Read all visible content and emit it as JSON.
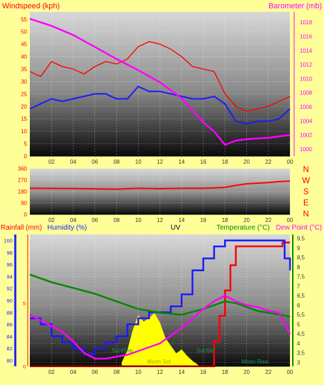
{
  "colors": {
    "background": "#ffff99",
    "red": "#ff0000",
    "blue": "#1a1aff",
    "magenta": "#ff00ff",
    "green": "#008800",
    "yellow": "#ffff00",
    "white": "#ffffff"
  },
  "chart_data": [
    {
      "type": "line",
      "title": "",
      "left_axis_label": "Windspeed (kph)",
      "right_axis_label": "Barometer (mb)",
      "x_ticks": [
        "02",
        "04",
        "06",
        "08",
        "10",
        "12",
        "14",
        "16",
        "18",
        "20",
        "22",
        "00"
      ],
      "y_left_ticks": [
        0,
        5,
        10,
        15,
        20,
        25,
        30,
        35,
        40,
        45,
        50,
        55
      ],
      "y_left_range": [
        0,
        58
      ],
      "y_right_ticks": [
        1000,
        1002,
        1004,
        1006,
        1008,
        1010,
        1012,
        1014,
        1016,
        1018
      ],
      "y_right_range": [
        999,
        1019.5
      ],
      "grid": true,
      "series": [
        {
          "id": "gust",
          "color": "#ff0000",
          "x": [
            0,
            1,
            2,
            3,
            4,
            5,
            6,
            7,
            8,
            9,
            10,
            11,
            12,
            13,
            14,
            15,
            16,
            17,
            18,
            19,
            20,
            21,
            22,
            23,
            24
          ],
          "values": [
            34,
            32,
            38,
            36,
            35,
            33,
            36,
            38,
            37,
            39,
            44,
            46,
            45,
            43,
            40,
            36,
            35,
            34,
            25,
            20,
            18,
            19,
            20,
            22,
            24
          ]
        },
        {
          "id": "average",
          "color": "#1a1aff",
          "x": [
            0,
            1,
            2,
            3,
            4,
            5,
            6,
            7,
            8,
            9,
            10,
            11,
            12,
            13,
            14,
            15,
            16,
            17,
            18,
            19,
            20,
            21,
            22,
            23,
            24
          ],
          "values": [
            19,
            21,
            23,
            22,
            23,
            24,
            25,
            25,
            23,
            23,
            28,
            26,
            26,
            25,
            24,
            23,
            23,
            24,
            21,
            14,
            13,
            14,
            14,
            15,
            19
          ]
        },
        {
          "id": "pressure",
          "color": "#ff00ff",
          "x": [
            0,
            2,
            4,
            6,
            8,
            10,
            12,
            14,
            16,
            17,
            18,
            19,
            20,
            22,
            24
          ],
          "values": [
            1018.5,
            1017.5,
            1016.2,
            1014.5,
            1012.8,
            1011.2,
            1009.5,
            1007.2,
            1003.8,
            1002.5,
            1000.6,
            1001.2,
            1001.4,
            1001.6,
            1002.0
          ]
        }
      ]
    },
    {
      "type": "line",
      "title": "",
      "right_labels": [
        "N",
        "W",
        "S",
        "E",
        "N"
      ],
      "x_ticks": [
        "02",
        "04",
        "06",
        "08",
        "10",
        "12",
        "14",
        "16",
        "18",
        "20",
        "22",
        "00"
      ],
      "y_ticks": [
        0,
        90,
        180,
        270,
        360
      ],
      "y_range": [
        0,
        360
      ],
      "grid": true,
      "series": [
        {
          "id": "direction",
          "color": "#ff0000",
          "x": [
            0,
            4,
            6,
            8,
            10,
            12,
            14,
            16,
            17,
            18,
            19,
            20,
            21,
            22,
            23,
            24
          ],
          "values": [
            205,
            203,
            200,
            198,
            205,
            202,
            205,
            205,
            208,
            212,
            228,
            240,
            245,
            250,
            258,
            262
          ]
        }
      ]
    },
    {
      "type": "line",
      "title": "",
      "labels": {
        "rainfall": "Rainfall (mm)",
        "humidity": "Humidity (%)",
        "uv": "UV",
        "temperature": "Temperature (°C)",
        "dew_point": "Dew Point (°C)",
        "sunrise": "SunRise",
        "sunset": "SunSet",
        "moonset": "Moon Set",
        "moonrise": "Moon Rise"
      },
      "x_ticks": [
        "02",
        "04",
        "06",
        "08",
        "10",
        "12",
        "14",
        "16",
        "18",
        "20",
        "22",
        "00"
      ],
      "rain_ticks": [
        0,
        5
      ],
      "rain_range": [
        0,
        10
      ],
      "humidity_ticks": [
        80,
        82,
        84,
        86,
        88,
        90,
        92,
        94,
        96,
        98,
        100
      ],
      "humidity_range": [
        79,
        101
      ],
      "temp_ticks": [
        3,
        3.5,
        4,
        4.5,
        5,
        5.5,
        6,
        6.5,
        7,
        7.5,
        8,
        8.5,
        9,
        9.5
      ],
      "temp_ticks_text": [
        "3",
        "3,5",
        "4",
        "4,5",
        "5",
        "5,5",
        "6",
        "6,5",
        "7",
        "7,5",
        "8",
        "8,5",
        "9",
        "9,5"
      ],
      "temp_range": [
        2.8,
        9.7
      ],
      "grid": true,
      "series": [
        {
          "id": "rainfall",
          "color": "#ff0000",
          "axis": "rain",
          "x": [
            0,
            16.2,
            17,
            17.5,
            18,
            18.5,
            19,
            20,
            22,
            23,
            23.3,
            24
          ],
          "values": [
            0,
            0,
            2,
            4,
            6,
            8,
            9.5,
            9.5,
            9.5,
            9.5,
            9.8,
            9.8
          ]
        },
        {
          "id": "humidity",
          "color": "#1a1aff",
          "axis": "humidity",
          "x": [
            0,
            1,
            2,
            3,
            4,
            5,
            6,
            7,
            8,
            9,
            10,
            11,
            12,
            13,
            14,
            15,
            16,
            17,
            18,
            19,
            20,
            21,
            22,
            23,
            23.5,
            24
          ],
          "values": [
            87,
            86,
            84,
            83,
            82,
            81,
            82,
            83,
            84,
            86,
            87,
            88,
            88,
            89,
            91,
            95,
            97,
            99,
            100,
            100,
            100,
            100,
            100,
            100,
            97,
            95
          ]
        },
        {
          "id": "temperature",
          "color": "#008800",
          "axis": "temp",
          "x": [
            0,
            2,
            4,
            6,
            8,
            10,
            12,
            14,
            16,
            18,
            19,
            20,
            21,
            22,
            23,
            24
          ],
          "values": [
            7.6,
            7.2,
            6.9,
            6.6,
            6.2,
            5.8,
            5.6,
            5.5,
            5.8,
            6.2,
            6.1,
            5.9,
            5.7,
            5.6,
            5.5,
            5.4
          ]
        },
        {
          "id": "dew_point",
          "color": "#ff00ff",
          "axis": "temp",
          "x": [
            0,
            1,
            2,
            3,
            4,
            5,
            6,
            7,
            8,
            9,
            10,
            11,
            12,
            13,
            14,
            15,
            16,
            17,
            18,
            19,
            20,
            21,
            22,
            23,
            24
          ],
          "values": [
            5.5,
            5.2,
            4.9,
            4.6,
            4.1,
            3.5,
            3.2,
            3.2,
            3.3,
            3.4,
            3.6,
            3.8,
            4.0,
            4.4,
            4.8,
            5.3,
            5.8,
            6.2,
            6.5,
            6.2,
            6.0,
            5.9,
            5.7,
            5.6,
            4.5
          ]
        },
        {
          "id": "uv",
          "color": "#ffff00",
          "axis": "rain",
          "x": [
            8.5,
            9,
            9.5,
            10,
            10.5,
            11,
            11.5,
            12,
            12.5,
            13,
            13.5,
            14,
            14.5,
            15,
            15.5
          ],
          "values": [
            0.3,
            1.2,
            2.8,
            4.0,
            3.5,
            3.8,
            4.2,
            3.4,
            2.2,
            1.6,
            1.0,
            1.3,
            0.8,
            0.4,
            0.1
          ]
        }
      ]
    }
  ]
}
